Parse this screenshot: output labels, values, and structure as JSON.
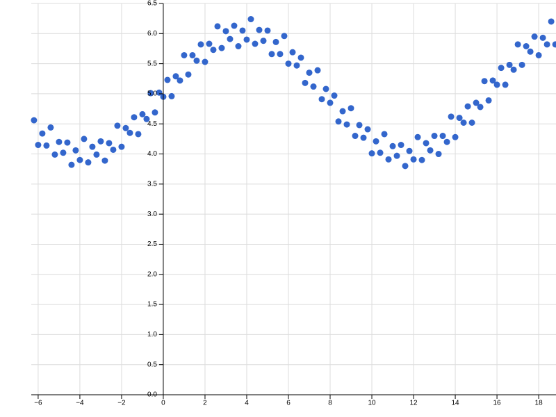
{
  "chart_data": {
    "type": "scatter",
    "color": "#3366cc",
    "grid": true,
    "xlim": [
      -6.33,
      18.83
    ],
    "ylim": [
      0,
      6.5
    ],
    "xticks": [
      {
        "value": -6,
        "label": "−6"
      },
      {
        "value": -4,
        "label": "−4"
      },
      {
        "value": -2,
        "label": "−2"
      },
      0,
      2,
      4,
      6,
      8,
      10,
      12,
      14,
      16,
      18
    ],
    "yticks": [
      {
        "value": 0,
        "label": "0.0"
      },
      0.5,
      {
        "value": 1,
        "label": "1.0"
      },
      1.5,
      {
        "value": 2,
        "label": "2.0"
      },
      2.5,
      {
        "value": 3,
        "label": "3.0"
      },
      3.5,
      {
        "value": 4,
        "label": "4.0"
      },
      4.5,
      {
        "value": 5,
        "label": "5.0"
      },
      5.5,
      {
        "value": 6,
        "label": "6.0"
      },
      6.5
    ],
    "x": [
      -6.2,
      -6.0,
      -5.8,
      -5.6,
      -5.4,
      -5.2,
      -5.0,
      -4.8,
      -4.6,
      -4.4,
      -4.2,
      -4.0,
      -3.8,
      -3.6,
      -3.4,
      -3.2,
      -3.0,
      -2.8,
      -2.6,
      -2.4,
      -2.2,
      -2.0,
      -1.8,
      -1.6,
      -1.4,
      -1.2,
      -1.0,
      -0.8,
      -0.6,
      -0.4,
      -0.2,
      0,
      0.2,
      0.4,
      0.6,
      0.8,
      1.0,
      1.2,
      1.4,
      1.6,
      1.8,
      2.0,
      2.2,
      2.4,
      2.6,
      2.8,
      3.0,
      3.2,
      3.4,
      3.6,
      3.8,
      4.0,
      4.2,
      4.4,
      4.6,
      4.8,
      5.0,
      5.2,
      5.4,
      5.6,
      5.8,
      6.0,
      6.2,
      6.4,
      6.6,
      6.8,
      7.0,
      7.2,
      7.4,
      7.6,
      7.8,
      8.0,
      8.2,
      8.4,
      8.6,
      8.8,
      9.0,
      9.2,
      9.4,
      9.6,
      9.8,
      10.0,
      10.2,
      10.4,
      10.6,
      10.8,
      11.0,
      11.2,
      11.4,
      11.6,
      11.8,
      12.0,
      12.2,
      12.4,
      12.6,
      12.8,
      13.0,
      13.2,
      13.4,
      13.6,
      13.8,
      14.0,
      14.2,
      14.4,
      14.6,
      14.8,
      15.0,
      15.2,
      15.4,
      15.6,
      15.8,
      16.0,
      16.2,
      16.4,
      16.6,
      16.8,
      17.0,
      17.2,
      17.4,
      17.6,
      17.8,
      18.0,
      18.2,
      18.4,
      18.6,
      18.8
    ],
    "values": [
      4.56,
      4.15,
      4.34,
      4.14,
      4.44,
      3.99,
      4.2,
      4.02,
      4.19,
      3.82,
      4.06,
      3.9,
      4.25,
      3.86,
      4.12,
      3.99,
      4.21,
      3.89,
      4.18,
      4.07,
      4.47,
      4.12,
      4.43,
      4.35,
      4.61,
      4.33,
      4.66,
      4.58,
      5.01,
      4.69,
      5.02,
      4.95,
      5.23,
      4.96,
      5.29,
      5.22,
      5.64,
      5.32,
      5.64,
      5.55,
      5.82,
      5.53,
      5.83,
      5.73,
      6.12,
      5.76,
      6.04,
      5.91,
      6.13,
      5.79,
      6.05,
      5.9,
      6.24,
      5.83,
      6.06,
      5.88,
      6.05,
      5.66,
      5.86,
      5.66,
      5.96,
      5.5,
      5.69,
      5.47,
      5.6,
      5.18,
      5.35,
      5.12,
      5.39,
      4.91,
      5.08,
      4.85,
      4.97,
      4.54,
      4.71,
      4.49,
      4.76,
      4.3,
      4.48,
      4.27,
      4.41,
      4.01,
      4.21,
      4.02,
      4.33,
      3.91,
      4.13,
      3.97,
      4.15,
      3.8,
      4.05,
      3.91,
      4.28,
      3.9,
      4.18,
      4.06,
      4.3,
      4.0,
      4.3,
      4.2,
      4.62,
      4.28,
      4.6,
      4.52,
      4.79,
      4.52,
      4.85,
      4.78,
      5.21,
      4.89,
      5.22,
      5.15,
      5.43,
      5.15,
      5.48,
      5.4,
      5.82,
      5.48,
      5.79,
      5.7,
      5.95,
      5.64,
      5.93,
      5.82,
      6.2,
      5.82
    ]
  }
}
